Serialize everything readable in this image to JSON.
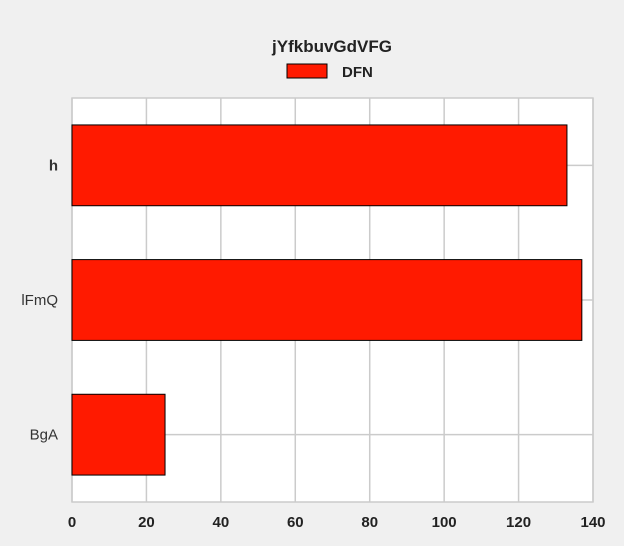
{
  "chart_data": {
    "type": "bar",
    "orientation": "horizontal",
    "title": "jYfkbuvGdVFG",
    "xlabel": "",
    "ylabel": "",
    "categories": [
      "h",
      "lFmQ",
      "BgA"
    ],
    "series": [
      {
        "name": "DFN",
        "values": [
          133,
          137,
          25
        ],
        "color": "#ff1a00"
      }
    ],
    "xlim": [
      0,
      140
    ],
    "xticks": [
      0,
      20,
      40,
      60,
      80,
      100,
      120,
      140
    ],
    "grid": true,
    "legend_position": "top-center",
    "plot_background": "#ffffff",
    "figure_background": "#f0f0f0",
    "grid_color": "#cbcbcb",
    "bar_edge_color": "#000000"
  }
}
